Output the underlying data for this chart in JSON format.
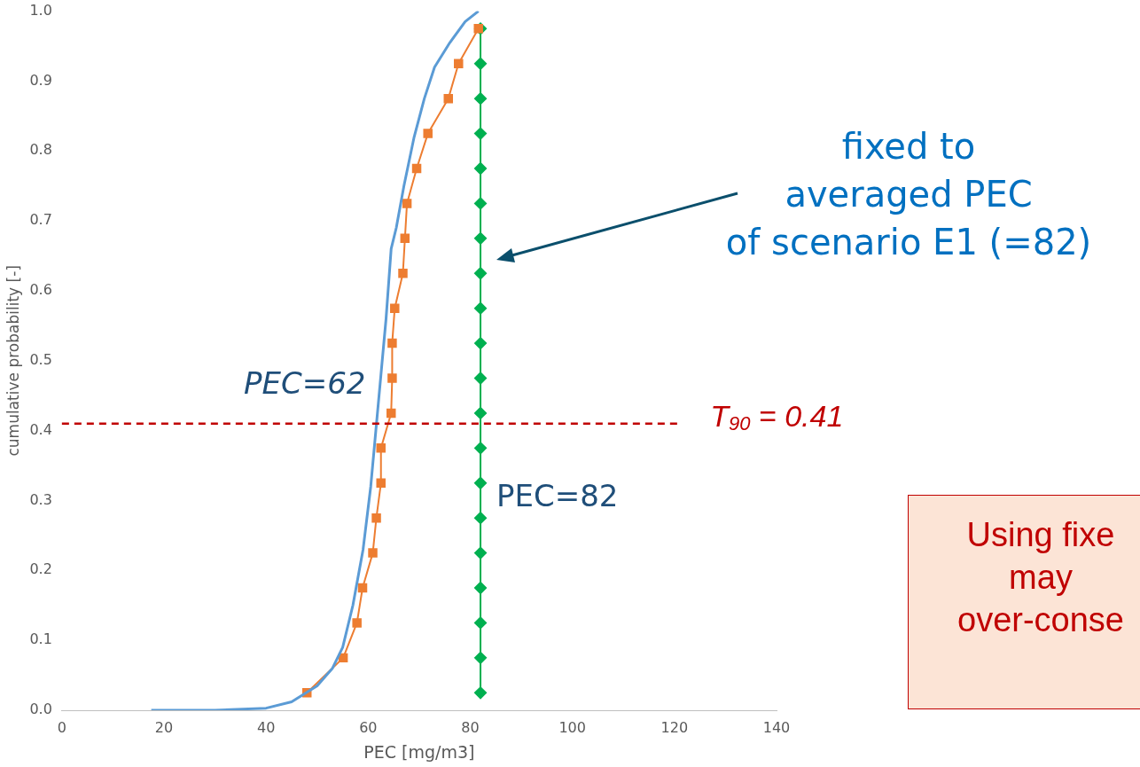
{
  "chart_data": {
    "type": "line",
    "xlabel": "PEC [mg/m3]",
    "ylabel": "cumulative probability [-]",
    "xlim": [
      0,
      140
    ],
    "xticks": [
      0,
      20,
      40,
      60,
      80,
      100,
      120,
      140
    ],
    "ylim": [
      0,
      1
    ],
    "yticks": [
      {
        "value": 0,
        "label": "0.0"
      },
      0.1,
      0.2,
      0.3,
      0.4,
      0.5,
      0.6,
      0.7,
      0.8,
      0.9,
      {
        "value": 1,
        "label": "1.0"
      }
    ],
    "grid": false,
    "legend": false,
    "line_style": "solid",
    "series": [
      {
        "color": "#5b9bd5",
        "marker": "none",
        "x": [
          17.5,
          30,
          40,
          45,
          50,
          53,
          55,
          57,
          59,
          60.5,
          61.5,
          62.5,
          63.5,
          64.5,
          65.5,
          67,
          69,
          71,
          73,
          76,
          79,
          81.6
        ],
        "values": [
          0,
          0,
          0.003,
          0.012,
          0.035,
          0.06,
          0.09,
          0.15,
          0.23,
          0.32,
          0.4,
          0.48,
          0.56,
          0.66,
          0.69,
          0.75,
          0.82,
          0.875,
          0.92,
          0.955,
          0.985,
          1
        ]
      },
      {
        "color": "#ed7d31",
        "marker": "square",
        "x": [
          48,
          55.1,
          57.8,
          58.9,
          60.9,
          61.6,
          62.5,
          62.5,
          64.5,
          64.7,
          64.7,
          65.2,
          66.8,
          67.2,
          67.6,
          69.5,
          71.7,
          75.7,
          77.7,
          81.6
        ],
        "values": [
          0.025,
          0.075,
          0.125,
          0.175,
          0.225,
          0.275,
          0.325,
          0.375,
          0.425,
          0.475,
          0.525,
          0.575,
          0.625,
          0.675,
          0.725,
          0.775,
          0.825,
          0.875,
          0.925,
          0.975
        ]
      },
      {
        "color": "#00b050",
        "marker": "diamond",
        "x": [
          82,
          82,
          82,
          82,
          82,
          82,
          82,
          82,
          82,
          82,
          82,
          82,
          82,
          82,
          82,
          82,
          82,
          82,
          82,
          82
        ],
        "values": [
          0.025,
          0.075,
          0.125,
          0.175,
          0.225,
          0.275,
          0.325,
          0.375,
          0.425,
          0.475,
          0.525,
          0.575,
          0.625,
          0.675,
          0.725,
          0.775,
          0.825,
          0.875,
          0.925,
          0.975
        ]
      }
    ],
    "ref_lines": [
      {
        "axis": "y",
        "value": 0.41,
        "label": "T$_{90}$ = 0.41",
        "color": "#c00000",
        "line_style": "dashed"
      }
    ],
    "annotations": [
      "PEC=62",
      "PEC=82",
      "fixed to\naveraged PEC\nof scenario E1 (=82)",
      "Using fixe\nmay\nover-conse"
    ]
  }
}
